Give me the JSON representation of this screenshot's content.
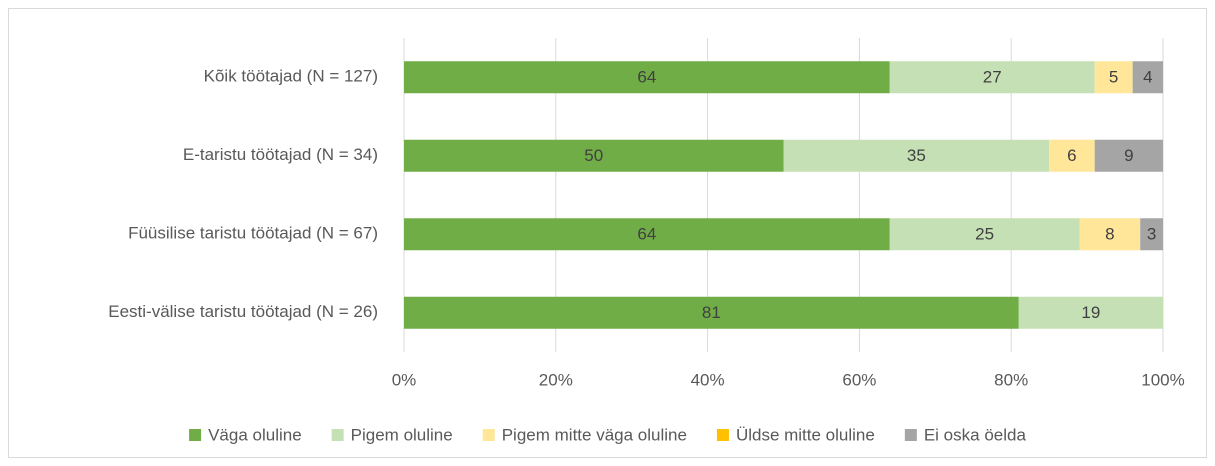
{
  "chart_data": {
    "type": "stacked-barh",
    "categories": [
      "Kõik töötajad (N = 127)",
      "E-taristu töötajad (N = 34)",
      "Füüsilise taristu töötajad (N = 67)",
      "Eesti-välise taristu töötajad  (N = 26)"
    ],
    "series": [
      {
        "name": "Väga oluline",
        "color": "#70ad47",
        "values": [
          64,
          50,
          64,
          81
        ]
      },
      {
        "name": "Pigem oluline",
        "color": "#c5e0b4",
        "values": [
          27,
          35,
          25,
          19
        ]
      },
      {
        "name": "Pigem mitte väga oluline",
        "color": "#ffe699",
        "values": [
          5,
          6,
          8,
          0
        ]
      },
      {
        "name": "Üldse mitte oluline",
        "color": "#ffc000",
        "values": [
          0,
          0,
          0,
          0
        ]
      },
      {
        "name": "Ei oska öelda",
        "color": "#a5a5a5",
        "values": [
          4,
          9,
          3,
          0
        ]
      }
    ],
    "xlim": [
      0,
      100
    ],
    "xticks": [
      {
        "value": 0,
        "label": "0%"
      },
      {
        "value": 20,
        "label": "20%"
      },
      {
        "value": 40,
        "label": "40%"
      },
      {
        "value": 60,
        "label": "60%"
      },
      {
        "value": 80,
        "label": "80%"
      },
      {
        "value": 100,
        "label": "100%"
      }
    ],
    "grid": true,
    "legend": "bottom"
  }
}
